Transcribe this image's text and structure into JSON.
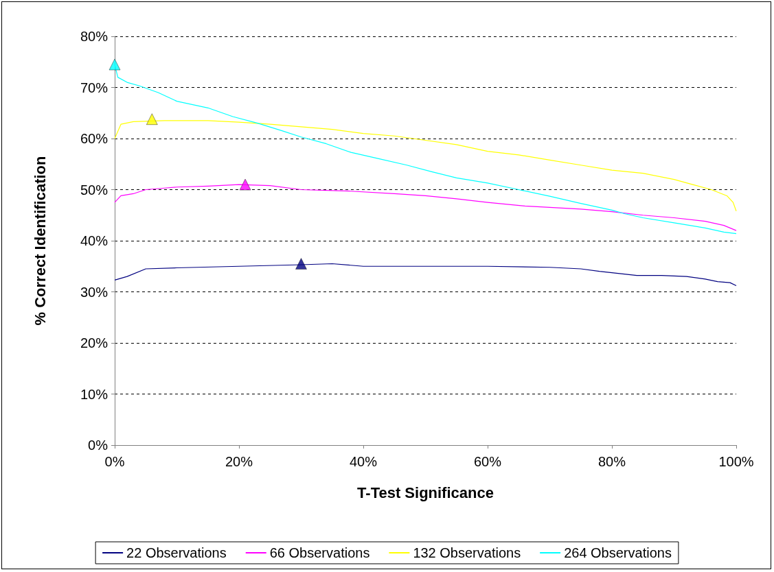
{
  "chart_data": {
    "type": "line",
    "xlabel": "T-Test Significance",
    "ylabel": "% Correct Identification",
    "xlim": [
      0,
      100
    ],
    "xticks": [
      {
        "value": 0,
        "label": "0%"
      },
      {
        "value": 20,
        "label": "20%"
      },
      {
        "value": 40,
        "label": "40%"
      },
      {
        "value": 60,
        "label": "60%"
      },
      {
        "value": 80,
        "label": "80%"
      },
      {
        "value": 100,
        "label": "100%"
      }
    ],
    "ylim": [
      0,
      80
    ],
    "yticks": [
      {
        "value": 0,
        "label": "0%"
      },
      {
        "value": 10,
        "label": "10%"
      },
      {
        "value": 20,
        "label": "20%"
      },
      {
        "value": 30,
        "label": "30%"
      },
      {
        "value": 40,
        "label": "40%"
      },
      {
        "value": 50,
        "label": "50%"
      },
      {
        "value": 60,
        "label": "60%"
      },
      {
        "value": 70,
        "label": "70%"
      },
      {
        "value": 80,
        "label": "80%"
      }
    ],
    "grid": "y",
    "legend": "bottom",
    "marker": "none",
    "line_style": "solid",
    "series": [
      {
        "name": "22 Observations",
        "color": "#000080",
        "x": [
          0,
          2,
          5,
          10,
          20,
          30,
          35,
          40,
          50,
          60,
          70,
          75,
          78,
          84,
          88,
          92,
          95,
          97,
          99,
          100
        ],
        "values": [
          32.3,
          33,
          34.5,
          34.7,
          35,
          35.3,
          35.5,
          35,
          35,
          35,
          34.8,
          34.5,
          34,
          33.2,
          33.2,
          33,
          32.5,
          32,
          31.8,
          31.2
        ]
      },
      {
        "name": "66 Observations",
        "color": "#ff00ff",
        "x": [
          0,
          1,
          3,
          5,
          8,
          10,
          15,
          20,
          25,
          30,
          38,
          45,
          50,
          55,
          60,
          66,
          75,
          80,
          85,
          90,
          95,
          98,
          100
        ],
        "values": [
          47.5,
          48.8,
          49.2,
          50,
          50.3,
          50.5,
          50.7,
          51,
          50.8,
          50,
          49.7,
          49.2,
          48.8,
          48.2,
          47.5,
          46.8,
          46.2,
          45.7,
          45,
          44.5,
          43.8,
          43,
          42
        ]
      },
      {
        "name": "132 Observations",
        "color": "#ffff00",
        "x": [
          0,
          1,
          3,
          8,
          15,
          20,
          25,
          30,
          35,
          40,
          45,
          48,
          55,
          60,
          65,
          70,
          75,
          80,
          85,
          90,
          93,
          96,
          98.5,
          99.5,
          100
        ],
        "values": [
          60,
          62.8,
          63.3,
          63.5,
          63.5,
          63.2,
          62.8,
          62.3,
          61.8,
          61,
          60.5,
          60,
          58.8,
          57.5,
          56.8,
          55.8,
          54.8,
          53.8,
          53.2,
          52,
          51,
          50,
          48.8,
          47.5,
          45.8
        ]
      },
      {
        "name": "264 Observations",
        "color": "#00ffff",
        "x": [
          0,
          0.5,
          2,
          4,
          7,
          10,
          15,
          19,
          23,
          27,
          30,
          34,
          38,
          42,
          47,
          51,
          55,
          60,
          65,
          70,
          75,
          80,
          82,
          85,
          90,
          95,
          98,
          100
        ],
        "values": [
          74.5,
          72,
          71,
          70.3,
          69,
          67.3,
          66,
          64.3,
          63,
          61.5,
          60.3,
          59,
          57.3,
          56.2,
          54.8,
          53.5,
          52.3,
          51.3,
          50,
          48.7,
          47.3,
          46,
          45.3,
          44.5,
          43.5,
          42.5,
          41.7,
          41.4
        ]
      },
      {
        "type": "scatter",
        "marker": "triangle",
        "x": [
          30,
          21,
          6,
          0
        ],
        "values": [
          35.5,
          51,
          63.8,
          74.5
        ],
        "colors": [
          "#000080",
          "#ff00ff",
          "#ffff00",
          "#00ffff"
        ]
      }
    ]
  }
}
